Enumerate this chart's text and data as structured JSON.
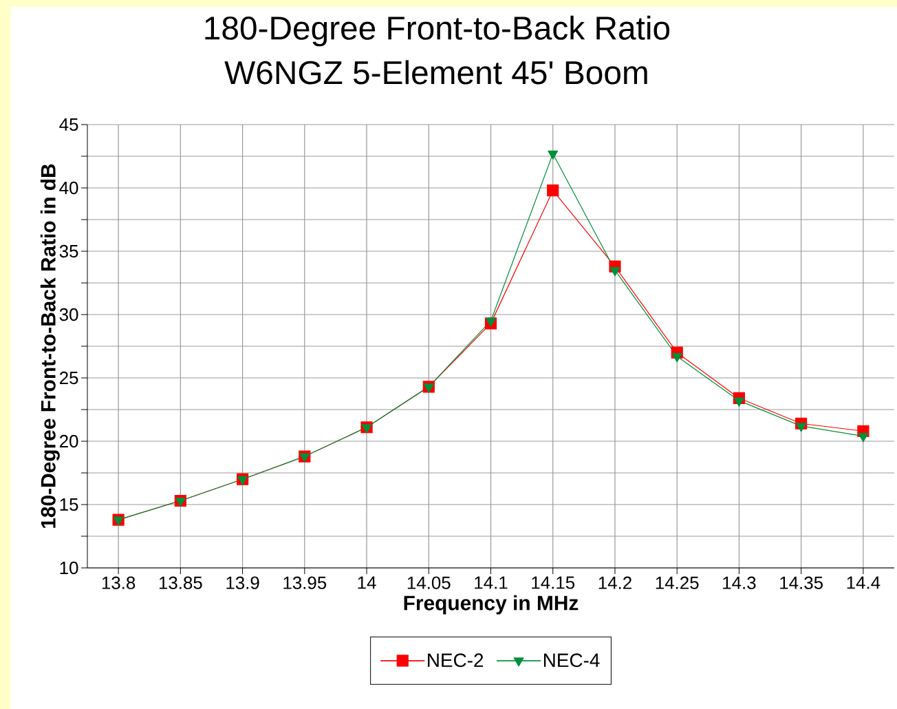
{
  "chart_data": {
    "type": "line",
    "title": "180-Degree Front-to-Back Ratio",
    "subtitle": "W6NGZ 5-Element 45' Boom",
    "xlabel": "Frequency in MHz",
    "ylabel": "180-Degree Front-to-Back Ratio in dB",
    "categories": [
      "13.8",
      "13.85",
      "13.9",
      "13.95",
      "14",
      "14.05",
      "14.1",
      "14.15",
      "14.2",
      "14.25",
      "14.3",
      "14.35",
      "14.4"
    ],
    "series": [
      {
        "name": "NEC-2",
        "color": "#ff0000",
        "marker": "square",
        "values": [
          13.8,
          15.3,
          17.0,
          18.8,
          21.1,
          24.3,
          29.3,
          39.8,
          33.8,
          27.0,
          23.4,
          21.4,
          20.8
        ]
      },
      {
        "name": "NEC-4",
        "color": "#008f3a",
        "marker": "triangle",
        "values": [
          13.8,
          15.3,
          17.0,
          18.8,
          21.1,
          24.3,
          29.5,
          42.7,
          33.5,
          26.7,
          23.2,
          21.2,
          20.4
        ]
      }
    ],
    "ylim": [
      10,
      45
    ],
    "yticks": [
      10,
      {
        "value": 12.5,
        "label": null
      },
      15,
      {
        "value": 17.5,
        "label": null
      },
      20,
      {
        "value": 22.5,
        "label": null
      },
      25,
      {
        "value": 27.5,
        "label": null
      },
      30,
      {
        "value": 32.5,
        "label": null
      },
      35,
      {
        "value": 37.5,
        "label": null
      },
      40,
      {
        "value": 42.5,
        "label": null
      },
      45
    ],
    "grid": true,
    "legend": "bottom",
    "line_style": "solid"
  }
}
